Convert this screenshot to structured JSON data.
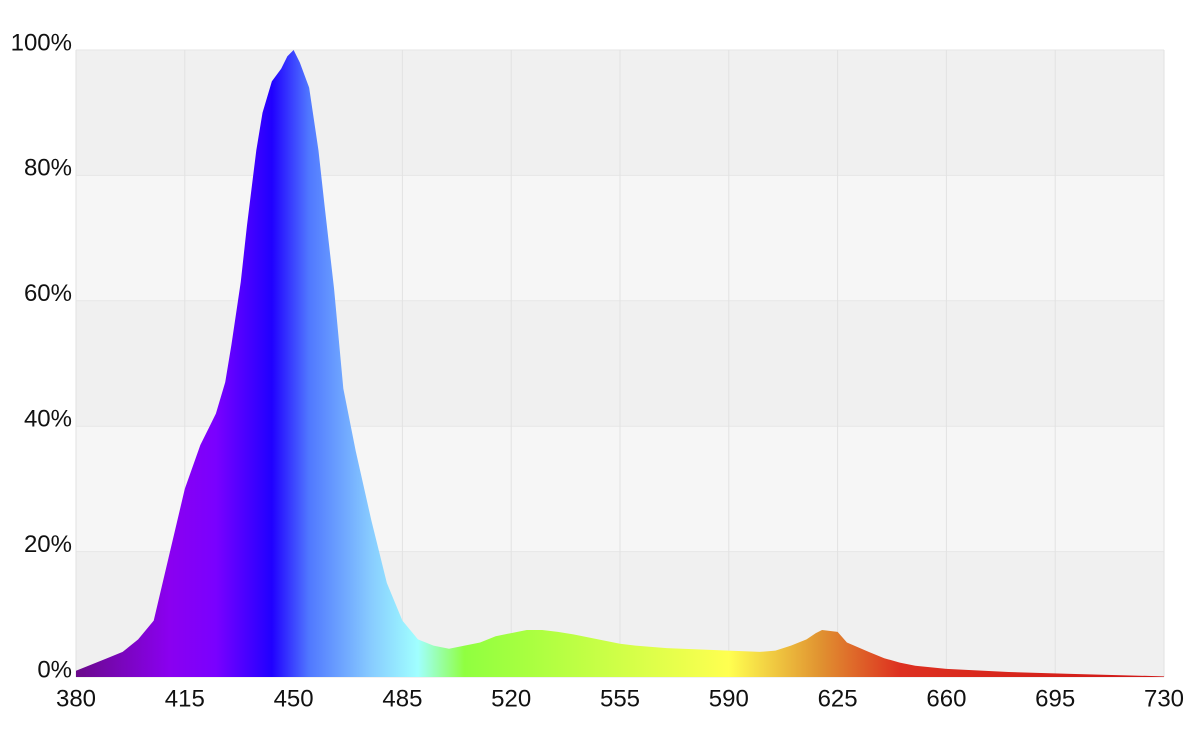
{
  "chart_data": {
    "type": "area",
    "x": [
      380,
      385,
      390,
      395,
      400,
      405,
      410,
      415,
      420,
      423,
      425,
      428,
      430,
      433,
      435,
      438,
      440,
      443,
      446,
      448,
      450,
      452,
      455,
      458,
      460,
      463,
      466,
      470,
      475,
      480,
      485,
      490,
      495,
      500,
      505,
      510,
      515,
      520,
      525,
      530,
      535,
      540,
      545,
      550,
      555,
      560,
      570,
      580,
      590,
      600,
      605,
      610,
      615,
      618,
      620,
      625,
      628,
      635,
      640,
      645,
      650,
      660,
      680,
      700,
      730
    ],
    "values": [
      1,
      2,
      3,
      4,
      6,
      9,
      19.5,
      30,
      37,
      40,
      42,
      47,
      53,
      63,
      72,
      84,
      90,
      95,
      97,
      99,
      100,
      98,
      94,
      84,
      75,
      62,
      46,
      36,
      25,
      15,
      9,
      6,
      5,
      4.5,
      5,
      5.5,
      6.5,
      7,
      7.5,
      7.5,
      7.2,
      6.8,
      6.3,
      5.8,
      5.3,
      5,
      4.6,
      4.4,
      4.2,
      4,
      4.2,
      5,
      6,
      7,
      7.5,
      7.2,
      5.5,
      4,
      3,
      2.3,
      1.8,
      1.3,
      0.8,
      0.5,
      0.1
    ],
    "colors": [
      {
        "x": 380,
        "color": "#6a0a8a"
      },
      {
        "x": 410,
        "color": "#8a00f0"
      },
      {
        "x": 425,
        "color": "#7a00ff"
      },
      {
        "x": 443,
        "color": "#2000ff"
      },
      {
        "x": 455,
        "color": "#5078ff"
      },
      {
        "x": 475,
        "color": "#88ccff"
      },
      {
        "x": 490,
        "color": "#a0ffff"
      },
      {
        "x": 505,
        "color": "#90ff40"
      },
      {
        "x": 525,
        "color": "#a8ff40"
      },
      {
        "x": 590,
        "color": "#ffff50"
      },
      {
        "x": 620,
        "color": "#e09030"
      },
      {
        "x": 645,
        "color": "#dd3020"
      },
      {
        "x": 730,
        "color": "#d01818"
      }
    ],
    "xlim": [
      380,
      730
    ],
    "xticks": [
      380,
      415,
      450,
      485,
      520,
      555,
      590,
      625,
      660,
      695,
      730
    ],
    "ylim": [
      0,
      100
    ],
    "yticks": [
      {
        "value": 0,
        "label": "0%"
      },
      {
        "value": 20,
        "label": "20%"
      },
      {
        "value": 40,
        "label": "40%"
      },
      {
        "value": 60,
        "label": "60%"
      },
      {
        "value": 80,
        "label": "80%"
      },
      {
        "value": 100,
        "label": "100%"
      }
    ],
    "grid": true
  }
}
